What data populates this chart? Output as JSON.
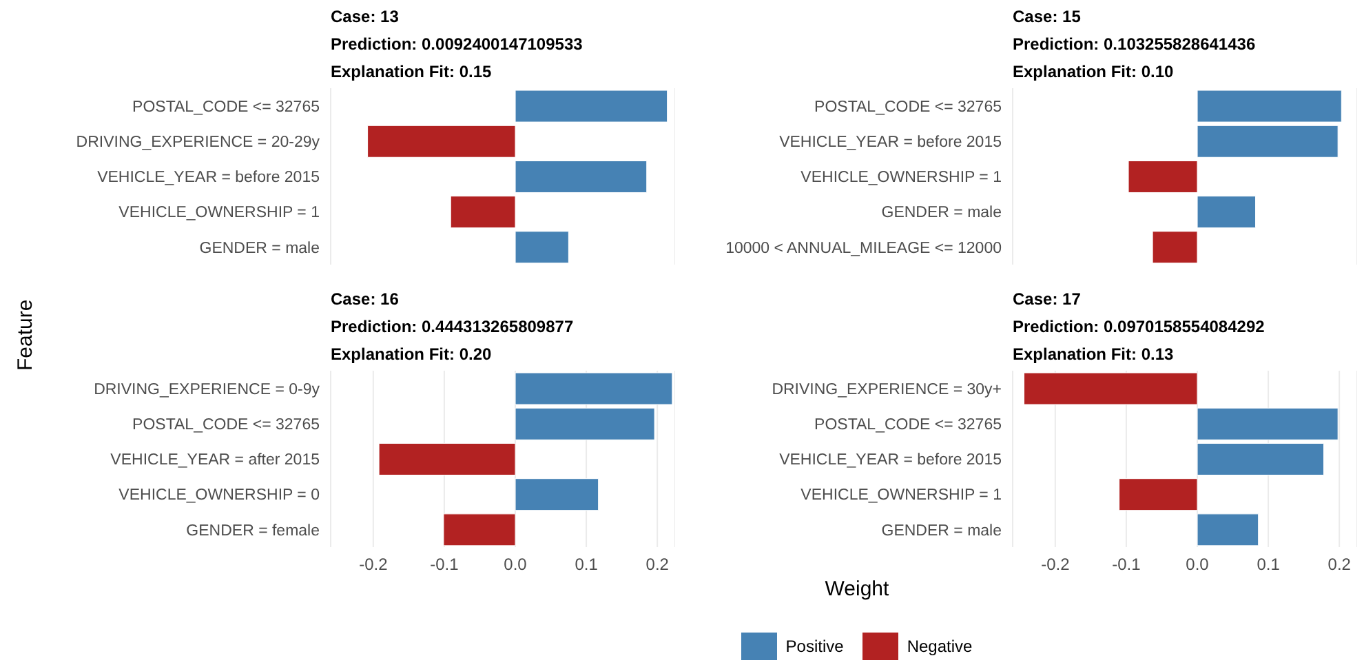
{
  "chart_data": [
    {
      "type": "bar",
      "orientation": "horizontal",
      "stacked": true,
      "title": "Case: 13",
      "subtitle": "Prediction: 0.0092400147109533",
      "annotations": [
        "Explanation Fit: 0.15"
      ],
      "grid": "x",
      "tick_labels": "y",
      "categories": [
        "POSTAL_CODE <= 32765",
        "DRIVING_EXPERIENCE = 20-29y",
        "VEHICLE_YEAR = before 2015",
        "VEHICLE_OWNERSHIP = 1",
        "GENDER = male"
      ],
      "series": [
        {
          "color": "#4682b4",
          "values": [
            0.214,
            null,
            0.185,
            null,
            0.075
          ]
        },
        {
          "color": "#b22222",
          "values": [
            null,
            -0.208,
            null,
            -0.091,
            null
          ]
        }
      ],
      "xlim": [
        -0.26,
        0.225
      ],
      "xticks": [
        {
          "value": -0.2,
          "label": null
        },
        {
          "value": -0.1,
          "label": null
        },
        {
          "value": 0,
          "label": null
        },
        {
          "value": 0.1,
          "label": null
        },
        {
          "value": 0.2,
          "label": null
        }
      ]
    },
    {
      "type": "bar",
      "orientation": "horizontal",
      "stacked": true,
      "title": "Case: 15",
      "subtitle": "Prediction: 0.103255828641436",
      "annotations": [
        "Explanation Fit: 0.10"
      ],
      "grid": "x",
      "tick_labels": "y",
      "categories": [
        "POSTAL_CODE <= 32765",
        "VEHICLE_YEAR = before 2015",
        "VEHICLE_OWNERSHIP = 1",
        "GENDER = male",
        "10000 < ANNUAL_MILEAGE <= 12000"
      ],
      "series": [
        {
          "color": "#4682b4",
          "values": [
            0.203,
            0.198,
            null,
            0.082,
            null
          ]
        },
        {
          "color": "#b22222",
          "values": [
            null,
            null,
            -0.097,
            null,
            -0.063
          ]
        }
      ],
      "xlim": [
        -0.26,
        0.225
      ],
      "xticks": [
        {
          "value": -0.2,
          "label": null
        },
        {
          "value": -0.1,
          "label": null
        },
        {
          "value": 0,
          "label": null
        },
        {
          "value": 0.1,
          "label": null
        },
        {
          "value": 0.2,
          "label": null
        }
      ]
    },
    {
      "type": "bar",
      "orientation": "horizontal",
      "stacked": true,
      "title": "Case: 16",
      "subtitle": "Prediction: 0.444313265809877",
      "annotations": [
        "Explanation Fit: 0.20"
      ],
      "ylabel": "Feature",
      "grid": "x",
      "categories": [
        "DRIVING_EXPERIENCE = 0-9y",
        "POSTAL_CODE <= 32765",
        "VEHICLE_YEAR = after 2015",
        "VEHICLE_OWNERSHIP = 0",
        "GENDER = female"
      ],
      "series": [
        {
          "color": "#4682b4",
          "values": [
            0.221,
            0.196,
            null,
            0.117,
            null
          ]
        },
        {
          "color": "#b22222",
          "values": [
            null,
            null,
            -0.192,
            null,
            -0.101
          ]
        }
      ],
      "xlim": [
        -0.26,
        0.225
      ],
      "xticks": [
        {
          "value": -0.2,
          "label": "-0.2"
        },
        {
          "value": -0.1,
          "label": "-0.1"
        },
        {
          "value": 0,
          "label": "0.0"
        },
        {
          "value": 0.1,
          "label": "0.1"
        },
        {
          "value": 0.2,
          "label": "0.2"
        }
      ]
    },
    {
      "type": "bar",
      "orientation": "horizontal",
      "stacked": true,
      "title": "Case: 17",
      "subtitle": "Prediction: 0.0970158554084292",
      "annotations": [
        "Explanation Fit: 0.13"
      ],
      "xlabel": "Weight",
      "legend": "bottom",
      "grid": "x",
      "categories": [
        "DRIVING_EXPERIENCE = 30y+",
        "POSTAL_CODE <= 32765",
        "VEHICLE_YEAR = before 2015",
        "VEHICLE_OWNERSHIP = 1",
        "GENDER = male"
      ],
      "series": [
        {
          "name": "Positive",
          "color": "#4682b4",
          "values": [
            null,
            0.198,
            0.178,
            null,
            0.086
          ]
        },
        {
          "name": "Negative",
          "color": "#b22222",
          "values": [
            -0.244,
            null,
            null,
            -0.11,
            null
          ]
        }
      ],
      "xlim": [
        -0.26,
        0.225
      ],
      "xticks": [
        {
          "value": -0.2,
          "label": "-0.2"
        },
        {
          "value": -0.1,
          "label": "-0.1"
        },
        {
          "value": 0,
          "label": "0.0"
        },
        {
          "value": 0.1,
          "label": "0.1"
        },
        {
          "value": 0.2,
          "label": "0.2"
        }
      ]
    }
  ]
}
